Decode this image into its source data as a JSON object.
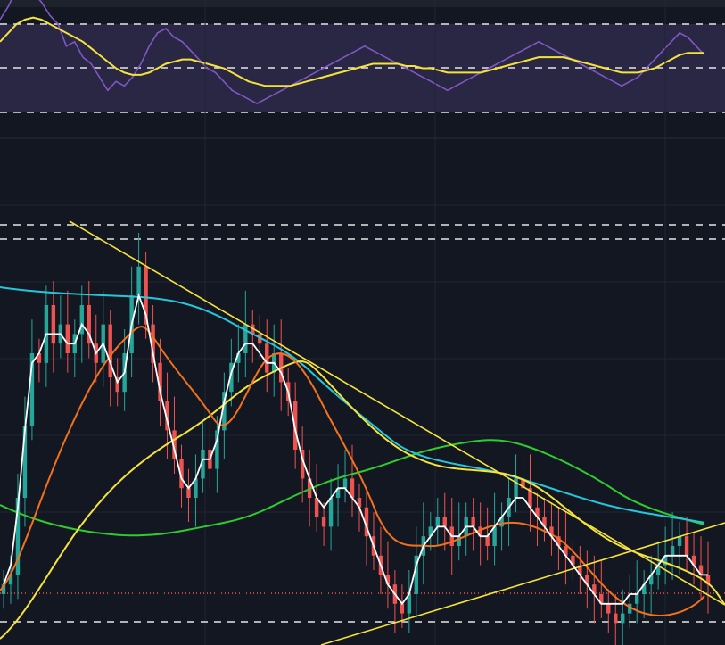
{
  "theme": {
    "background": "#131722",
    "pane_top_strip": "#1e222d",
    "rsi_band": "#2a2744",
    "grid": "#1f2533",
    "dash": "#e6e6e6",
    "rsi_line": "#7e57c2",
    "rsi_ma": "#f5e33b",
    "candle_up": "#26a69a",
    "candle_down": "#ef5350",
    "ema_fast": "#ffffff",
    "ema_mid": "#f4711c",
    "ma_yellow": "#f5e33b",
    "ma_cyan": "#26c6da",
    "ma_green": "#2ecc2e",
    "trendline": "#f5e33b",
    "price_line": "#ef5350"
  },
  "chart_data": [
    {
      "type": "line",
      "pane": "rsi",
      "ylim": [
        0,
        100
      ],
      "levels": [
        70,
        50,
        30
      ],
      "band": [
        30,
        70
      ],
      "series": [
        {
          "values": [
            72,
            78,
            86,
            90,
            84,
            80,
            74,
            70,
            60,
            62,
            55,
            52,
            46,
            40,
            44,
            42,
            46,
            52,
            60,
            66,
            68,
            64,
            62,
            58,
            54,
            50,
            48,
            44,
            40,
            38,
            36,
            34,
            36,
            38,
            40,
            42,
            44,
            46,
            48,
            50,
            52,
            54,
            56,
            58,
            60,
            58,
            56,
            54,
            52,
            50,
            48,
            46,
            44,
            42,
            40,
            42,
            44,
            46,
            48,
            50,
            52,
            54,
            56,
            58,
            60,
            62,
            60,
            58,
            56,
            54,
            52,
            50,
            48,
            46,
            44,
            42,
            44,
            46,
            50,
            54,
            58,
            62,
            66,
            64,
            60,
            56
          ]
        },
        {
          "values": [
            62,
            66,
            70,
            72,
            73,
            72,
            70,
            68,
            66,
            64,
            62,
            59,
            56,
            53,
            50,
            48,
            47,
            47,
            48,
            50,
            52,
            53,
            54,
            54,
            53,
            52,
            51,
            50,
            48,
            46,
            44,
            43,
            42,
            42,
            42,
            42,
            43,
            44,
            45,
            46,
            47,
            48,
            49,
            50,
            51,
            52,
            52,
            52,
            52,
            51,
            51,
            50,
            50,
            49,
            48,
            48,
            48,
            48,
            48,
            49,
            50,
            51,
            52,
            53,
            54,
            55,
            55,
            55,
            55,
            54,
            53,
            52,
            51,
            50,
            49,
            48,
            48,
            48,
            49,
            50,
            52,
            54,
            56,
            57,
            57,
            57
          ]
        }
      ]
    },
    {
      "type": "candlestick",
      "pane": "price",
      "ylim": [
        0,
        100
      ],
      "levels": [
        88,
        86,
        3
      ],
      "current_price": 13,
      "series": [
        {
          "name": "candles",
          "values": [
            12,
            14,
            30,
            45,
            60,
            58,
            70,
            62,
            66,
            60,
            64,
            70,
            62,
            58,
            66,
            55,
            52,
            60,
            72,
            78,
            66,
            58,
            50,
            44,
            38,
            32,
            30,
            34,
            40,
            36,
            44,
            52,
            58,
            60,
            66,
            64,
            62,
            56,
            60,
            54,
            50,
            40,
            34,
            30,
            26,
            24,
            30,
            32,
            34,
            30,
            28,
            22,
            18,
            14,
            12,
            8,
            6,
            10,
            18,
            22,
            24,
            26,
            24,
            20,
            22,
            26,
            24,
            22,
            20,
            24,
            26,
            30,
            34,
            32,
            28,
            26,
            24,
            22,
            20,
            18,
            16,
            14,
            12,
            10,
            8,
            6,
            4,
            6,
            8,
            10,
            12,
            14,
            16,
            18,
            20,
            22,
            18,
            16,
            14,
            12
          ]
        },
        {
          "name": "ema-fast",
          "values": [
            12,
            16,
            28,
            44,
            58,
            60,
            64,
            64,
            64,
            62,
            62,
            66,
            64,
            60,
            62,
            58,
            54,
            56,
            66,
            72,
            68,
            60,
            52,
            46,
            40,
            34,
            32,
            34,
            38,
            38,
            42,
            50,
            56,
            60,
            62,
            62,
            60,
            58,
            58,
            56,
            52,
            44,
            38,
            34,
            30,
            28,
            30,
            32,
            32,
            30,
            28,
            24,
            20,
            16,
            12,
            10,
            8,
            10,
            16,
            20,
            22,
            24,
            24,
            22,
            22,
            24,
            24,
            22,
            22,
            24,
            26,
            28,
            30,
            30,
            28,
            26,
            24,
            22,
            20,
            18,
            16,
            14,
            12,
            10,
            8,
            8,
            8,
            8,
            10,
            10,
            12,
            14,
            16,
            18,
            18,
            18,
            18,
            16,
            14,
            14
          ]
        }
      ]
    }
  ]
}
